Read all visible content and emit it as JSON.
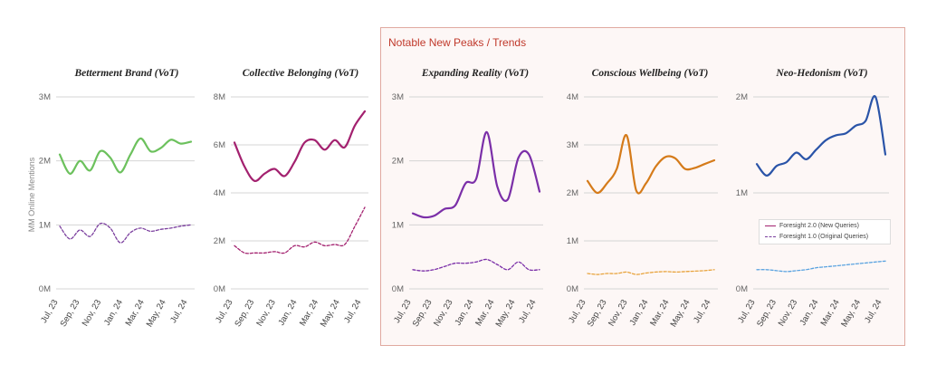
{
  "panel": {
    "title": "Notable New Peaks / Trends"
  },
  "y_axis_label": "MM Online Mentions",
  "legend": {
    "new_label": "Foresight 2.0 (New Queries)",
    "old_label": "Foresight 1.0 (Original Queries)"
  },
  "chart_data": [
    {
      "type": "line",
      "title": "Betterment Brand (VoT)",
      "x_ticks": [
        "Jul, 23",
        "Sep, 23",
        "Nov, 23",
        "Jan, 24",
        "Mar, 24",
        "May, 24",
        "Jul, 24"
      ],
      "ylim": [
        0,
        3
      ],
      "y_ticks": [
        "0M",
        "1M",
        "2M",
        "3M"
      ],
      "series": [
        {
          "name": "Foresight 2.0 (New Queries)",
          "style": "solid",
          "color": "#6cc15d",
          "values": [
            2.1,
            1.8,
            2.0,
            1.85,
            2.15,
            2.05,
            1.82,
            2.1,
            2.35,
            2.15,
            2.2,
            2.33,
            2.27,
            2.3
          ]
        },
        {
          "name": "Foresight 1.0 (Original Queries)",
          "style": "dashed",
          "color": "#7b3f9e",
          "values": [
            0.98,
            0.78,
            0.92,
            0.82,
            1.02,
            0.95,
            0.72,
            0.88,
            0.95,
            0.9,
            0.93,
            0.95,
            0.98,
            1.0
          ]
        }
      ]
    },
    {
      "type": "line",
      "title": "Collective Belonging (VoT)",
      "x_ticks": [
        "Jul, 23",
        "Sep, 23",
        "Nov, 23",
        "Jan, 24",
        "Mar, 24",
        "May, 24",
        "Jul, 24"
      ],
      "ylim": [
        0,
        8
      ],
      "y_ticks": [
        "0M",
        "2M",
        "4M",
        "6M",
        "8M"
      ],
      "series": [
        {
          "name": "Foresight 2.0 (New Queries)",
          "style": "solid",
          "color": "#a3216f",
          "values": [
            6.1,
            5.1,
            4.5,
            4.8,
            5.0,
            4.7,
            5.3,
            6.1,
            6.2,
            5.8,
            6.2,
            5.9,
            6.8,
            7.4
          ]
        },
        {
          "name": "Foresight 1.0 (Original Queries)",
          "style": "dashed",
          "color": "#a3216f",
          "values": [
            1.8,
            1.5,
            1.5,
            1.5,
            1.55,
            1.5,
            1.8,
            1.75,
            1.95,
            1.8,
            1.85,
            1.85,
            2.6,
            3.4
          ]
        }
      ]
    },
    {
      "type": "line",
      "title": "Expanding Reality (VoT)",
      "x_ticks": [
        "Jul, 23",
        "Sep, 23",
        "Nov, 23",
        "Jan, 24",
        "Mar, 24",
        "May, 24",
        "Jul, 24"
      ],
      "ylim": [
        0,
        3
      ],
      "y_ticks": [
        "0M",
        "1M",
        "2M",
        "3M"
      ],
      "series": [
        {
          "name": "Foresight 2.0 (New Queries)",
          "style": "solid",
          "color": "#7b2fa8",
          "values": [
            1.18,
            1.12,
            1.14,
            1.25,
            1.3,
            1.65,
            1.72,
            2.45,
            1.6,
            1.4,
            2.05,
            2.1,
            1.52
          ]
        },
        {
          "name": "Foresight 1.0 (Original Queries)",
          "style": "dashed",
          "color": "#7b2fa8",
          "values": [
            0.3,
            0.28,
            0.3,
            0.35,
            0.4,
            0.4,
            0.42,
            0.46,
            0.38,
            0.3,
            0.42,
            0.3,
            0.3
          ]
        }
      ]
    },
    {
      "type": "line",
      "title": "Conscious Wellbeing (VoT)",
      "x_ticks": [
        "Jul, 23",
        "Sep, 23",
        "Nov, 23",
        "Jan, 24",
        "Mar, 24",
        "May, 24",
        "Jul, 24"
      ],
      "ylim": [
        0,
        4
      ],
      "y_ticks": [
        "0M",
        "1M",
        "2M",
        "3M",
        "4M"
      ],
      "series": [
        {
          "name": "Foresight 2.0 (New Queries)",
          "style": "solid",
          "color": "#d57b1a",
          "values": [
            2.25,
            2.0,
            2.2,
            2.5,
            3.2,
            2.05,
            2.2,
            2.55,
            2.75,
            2.72,
            2.5,
            2.52,
            2.6,
            2.68
          ]
        },
        {
          "name": "Foresight 1.0 (Original Queries)",
          "style": "dashed",
          "color": "#e8a33c",
          "values": [
            0.32,
            0.3,
            0.32,
            0.32,
            0.35,
            0.3,
            0.33,
            0.35,
            0.36,
            0.35,
            0.36,
            0.37,
            0.38,
            0.4
          ]
        }
      ]
    },
    {
      "type": "line",
      "title": "Neo-Hedonism (VoT)",
      "x_ticks": [
        "Jul, 23",
        "Sep, 23",
        "Nov, 23",
        "Jan, 24",
        "Mar, 24",
        "May, 24",
        "Jul, 24"
      ],
      "ylim": [
        0,
        2
      ],
      "y_ticks": [
        "0M",
        "1M",
        "2M"
      ],
      "series": [
        {
          "name": "Foresight 2.0 (New Queries)",
          "style": "solid",
          "color": "#2a54a8",
          "values": [
            1.3,
            1.18,
            1.28,
            1.32,
            1.42,
            1.35,
            1.45,
            1.55,
            1.6,
            1.62,
            1.7,
            1.75,
            2.0,
            1.4
          ]
        },
        {
          "name": "Foresight 1.0 (Original Queries)",
          "style": "dashed",
          "color": "#5aa3e0",
          "values": [
            0.2,
            0.2,
            0.19,
            0.18,
            0.19,
            0.2,
            0.22,
            0.23,
            0.24,
            0.25,
            0.26,
            0.27,
            0.28,
            0.29
          ]
        }
      ]
    }
  ]
}
